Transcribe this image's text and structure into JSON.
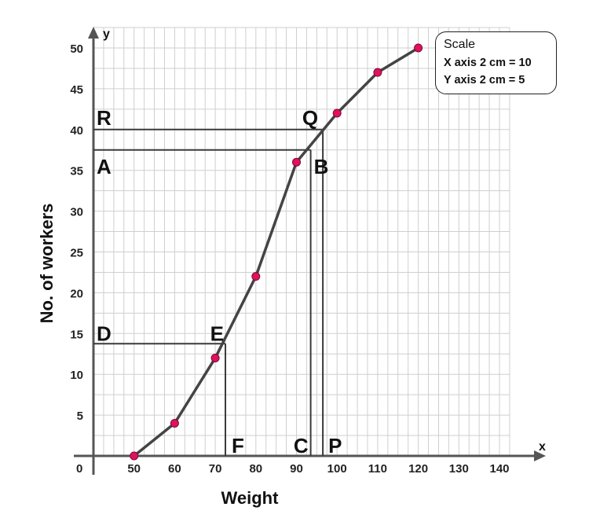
{
  "chart_data": {
    "type": "line",
    "xlabel": "Weight",
    "ylabel": "No. of workers",
    "x_axis_letter": "x",
    "y_axis_letter": "y",
    "origin_label": "0",
    "xlim": [
      40,
      145
    ],
    "ylim": [
      0,
      50
    ],
    "x_ticks": [
      50,
      60,
      70,
      80,
      90,
      100,
      110,
      120,
      130,
      140
    ],
    "x_tick_labels": [
      "50",
      "60",
      "70",
      "80",
      "90",
      "100",
      "110",
      "120",
      "130",
      "140"
    ],
    "y_ticks": [
      5,
      10,
      15,
      20,
      25,
      30,
      35,
      40,
      45,
      50
    ],
    "y_tick_labels": [
      "5",
      "10",
      "15",
      "20",
      "25",
      "30",
      "35",
      "40",
      "45",
      "50"
    ],
    "grid": true,
    "series": [
      {
        "x": [
          50,
          60,
          70,
          80,
          90,
          100,
          110,
          120
        ],
        "y": [
          0,
          4,
          12,
          22,
          36,
          42,
          47,
          50
        ]
      }
    ],
    "point_color": "#e0115f",
    "line_color": "#444444",
    "annotations": [
      {
        "label": "R",
        "x": 40,
        "y": 40
      },
      {
        "label": "Q",
        "x": 96.5,
        "y": 40
      },
      {
        "label": "A",
        "x": 40,
        "y": 37.5
      },
      {
        "label": "B",
        "x": 93.5,
        "y": 37.5
      },
      {
        "label": "D",
        "x": 40,
        "y": 13.75
      },
      {
        "label": "E",
        "x": 72.5,
        "y": 13.75
      },
      {
        "label": "F",
        "x": 72.5,
        "y": 0
      },
      {
        "label": "C",
        "x": 93.5,
        "y": 0
      },
      {
        "label": "P",
        "x": 96.5,
        "y": 0
      }
    ],
    "scale_box": {
      "title": "Scale",
      "lines": [
        "X axis 2 cm = 10",
        "Y axis 2 cm = 5"
      ]
    }
  }
}
